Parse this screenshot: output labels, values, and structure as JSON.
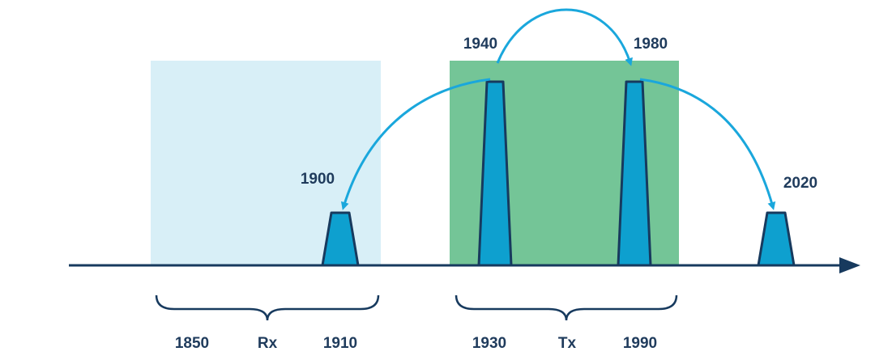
{
  "peaks": [
    {
      "label": "1900"
    },
    {
      "label": "1940"
    },
    {
      "label": "1980"
    },
    {
      "label": "2020"
    }
  ],
  "bands": [
    {
      "left": "1850",
      "name": "Rx",
      "right": "1910"
    },
    {
      "left": "1930",
      "name": "Tx",
      "right": "1990"
    }
  ]
}
